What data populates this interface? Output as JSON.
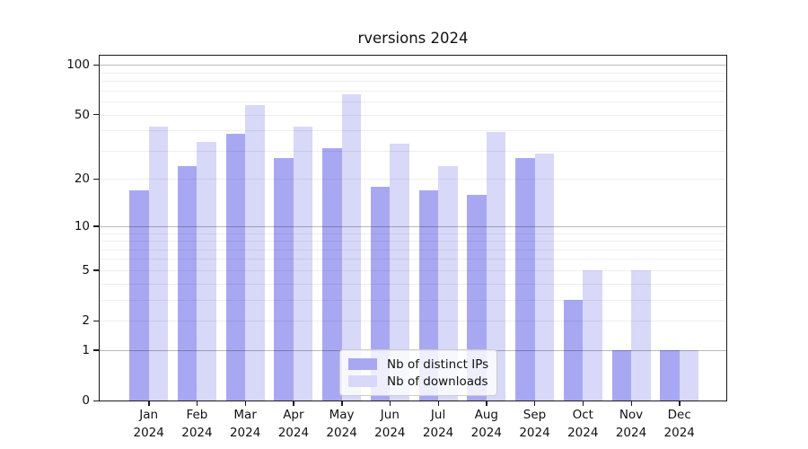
{
  "title": "rversions 2024",
  "chart_data": {
    "type": "bar",
    "title": "rversions 2024",
    "categories": [
      "Jan 2024",
      "Feb 2024",
      "Mar 2024",
      "Apr 2024",
      "May 2024",
      "Jun 2024",
      "Jul 2024",
      "Aug 2024",
      "Sep 2024",
      "Oct 2024",
      "Nov 2024",
      "Dec 2024"
    ],
    "series": [
      {
        "name": "Nb of distinct IPs",
        "color": "#a8a8f2",
        "values": [
          17,
          24,
          38,
          27,
          31,
          18,
          17,
          16,
          27,
          3,
          1,
          1
        ]
      },
      {
        "name": "Nb of downloads",
        "color": "#d8d8f8",
        "values": [
          42,
          34,
          57,
          42,
          66,
          33,
          24,
          39,
          29,
          5,
          5,
          1
        ]
      }
    ],
    "xlabel": "",
    "ylabel": "",
    "yscale": "log1p",
    "ylim": [
      0,
      113
    ],
    "yticks": [
      0,
      1,
      2,
      5,
      10,
      20,
      50,
      100
    ],
    "major_gridlines": [
      1,
      10,
      100
    ],
    "minor_gridlines": [
      2,
      3,
      4,
      5,
      6,
      7,
      8,
      9,
      20,
      30,
      40,
      50,
      60,
      70,
      80,
      90
    ],
    "grid": "on",
    "legend_position": "lower center"
  },
  "colors": {
    "bar_distinct_ips": "#a8a8f2",
    "bar_downloads": "#d8d8f8",
    "axis": "#1a1a1a",
    "major_grid": "#b3b3b3",
    "minor_grid": "#e9e9e9",
    "background": "#ffffff"
  }
}
